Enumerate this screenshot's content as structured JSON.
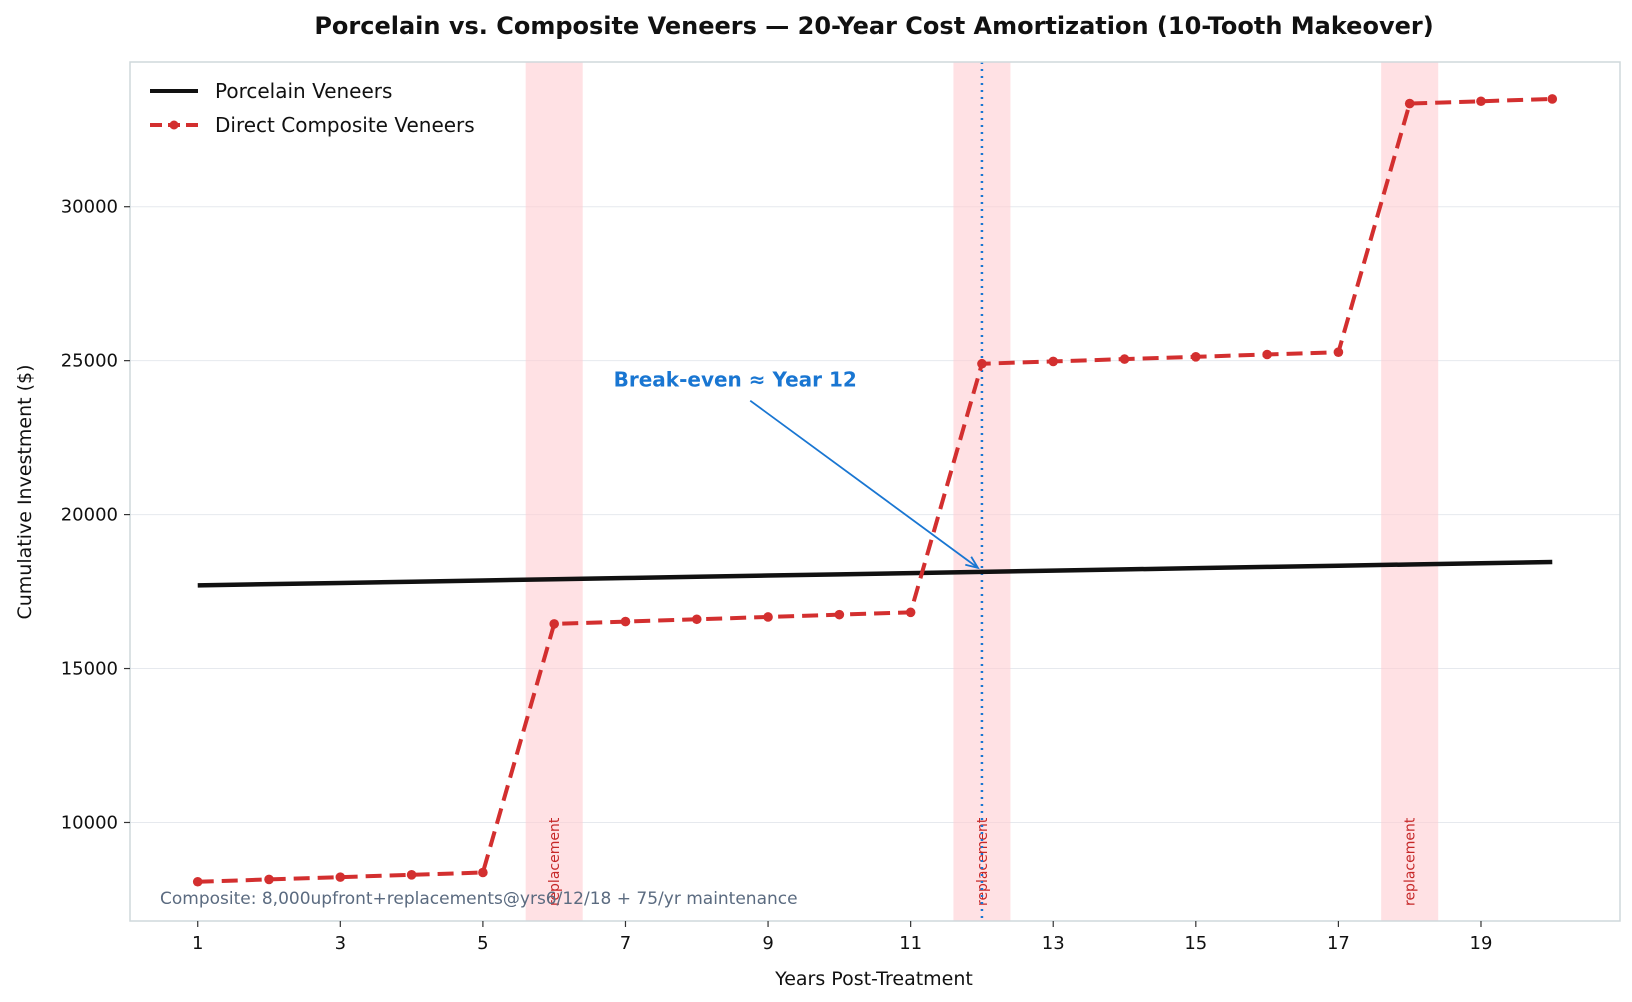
{
  "chart_data": {
    "type": "line",
    "title": "Porcelain vs. Composite Veneers — 20-Year Cost Amortization (10-Tooth Makeover)",
    "xlabel": "Years Post-Treatment",
    "ylabel": "Cumulative Investment ($)",
    "xlim": [
      0.05,
      20.95
    ],
    "ylim": [
      6800,
      34700
    ],
    "x_ticks": [
      1,
      3,
      5,
      7,
      9,
      11,
      13,
      15,
      17,
      19
    ],
    "y_ticks": [
      10000,
      15000,
      20000,
      25000,
      30000
    ],
    "grid": "horizontal",
    "legend_position": "top-left",
    "x": [
      1,
      2,
      3,
      4,
      5,
      6,
      7,
      8,
      9,
      10,
      11,
      12,
      13,
      14,
      15,
      16,
      17,
      18,
      19,
      20
    ],
    "series": [
      {
        "name": "Porcelain Veneers",
        "color": "#111111",
        "style": "solid",
        "markers": false,
        "values": [
          17700,
          17740,
          17780,
          17820,
          17860,
          17900,
          17940,
          17980,
          18020,
          18060,
          18100,
          18140,
          18180,
          18220,
          18260,
          18300,
          18340,
          18380,
          18420,
          18460
        ]
      },
      {
        "name": "Direct Composite Veneers",
        "color": "#d32f2f",
        "style": "dashed",
        "markers": true,
        "values": [
          8075,
          8150,
          8225,
          8300,
          8375,
          16450,
          16525,
          16600,
          16675,
          16750,
          16825,
          24900,
          24975,
          25050,
          25125,
          25200,
          25275,
          33350,
          33425,
          33500
        ]
      }
    ],
    "replacement_bands": [
      {
        "center": 6,
        "half_width": 0.4,
        "label": "replacement"
      },
      {
        "center": 12,
        "half_width": 0.4,
        "label": "replacement"
      },
      {
        "center": 18,
        "half_width": 0.4,
        "label": "replacement"
      }
    ],
    "break_even": {
      "x": 12,
      "label": "Break-even ≈ Year 12",
      "arrow_target": [
        12,
        18140
      ],
      "text_anchor_data": [
        8.75,
        23700
      ]
    },
    "footnote": "Composite: 8,000upfront+replacements@yrs6/12/18 + 75/yr maintenance",
    "colors": {
      "band": "#ffcdd2",
      "break_even": "#1976d2",
      "grid": "#e6e9ee",
      "frame": "#cfd8dc"
    }
  }
}
